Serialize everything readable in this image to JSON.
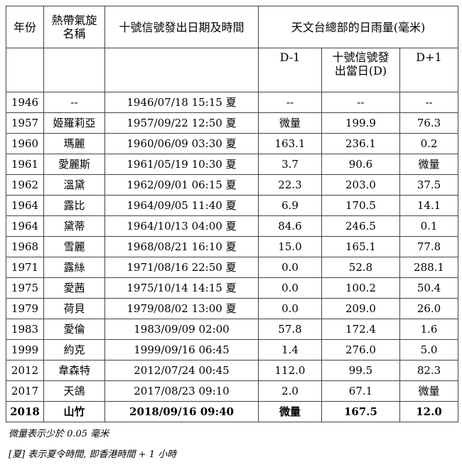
{
  "headers": {
    "year": "年份",
    "name": "熱帶氣旋\n名稱",
    "signal_time": "十號信號發出日期及時間",
    "rainfall": "天文台總部的日雨量(毫米)",
    "d_minus_1": "D-1",
    "d_day": "十號信號發\n出當日(D)",
    "d_plus_1": "D+1"
  },
  "rows": [
    {
      "year": "1946",
      "name": "--",
      "time": "1946/07/18 15:15 夏",
      "d_minus_1": "--",
      "d": "--",
      "d_plus_1": "--"
    },
    {
      "year": "1957",
      "name": "姬羅莉亞",
      "time": "1957/09/22 12:50 夏",
      "d_minus_1": "微量",
      "d": "199.9",
      "d_plus_1": "76.3"
    },
    {
      "year": "1960",
      "name": "瑪麗",
      "time": "1960/06/09 03:30 夏",
      "d_minus_1": "163.1",
      "d": "236.1",
      "d_plus_1": "0.2"
    },
    {
      "year": "1961",
      "name": "愛麗斯",
      "time": "1961/05/19 10:30 夏",
      "d_minus_1": "3.7",
      "d": "90.6",
      "d_plus_1": "微量"
    },
    {
      "year": "1962",
      "name": "溫黛",
      "time": "1962/09/01 06:15 夏",
      "d_minus_1": "22.3",
      "d": "203.0",
      "d_plus_1": "37.5"
    },
    {
      "year": "1964",
      "name": "露比",
      "time": "1964/09/05 11:40 夏",
      "d_minus_1": "6.9",
      "d": "170.5",
      "d_plus_1": "14.1"
    },
    {
      "year": "1964",
      "name": "黛蒂",
      "time": "1964/10/13 04:00 夏",
      "d_minus_1": "84.6",
      "d": "246.5",
      "d_plus_1": "0.1"
    },
    {
      "year": "1968",
      "name": "雪麗",
      "time": "1968/08/21 16:10 夏",
      "d_minus_1": "15.0",
      "d": "165.1",
      "d_plus_1": "77.8"
    },
    {
      "year": "1971",
      "name": "露絲",
      "time": "1971/08/16 22:50 夏",
      "d_minus_1": "0.0",
      "d": "52.8",
      "d_plus_1": "288.1"
    },
    {
      "year": "1975",
      "name": "愛茜",
      "time": "1975/10/14 14:15 夏",
      "d_minus_1": "0.0",
      "d": "100.2",
      "d_plus_1": "50.4"
    },
    {
      "year": "1979",
      "name": "荷貝",
      "time": "1979/08/02 13:00 夏",
      "d_minus_1": "0.0",
      "d": "209.0",
      "d_plus_1": "26.0"
    },
    {
      "year": "1983",
      "name": "愛倫",
      "time": "1983/09/09 02:00",
      "d_minus_1": "57.8",
      "d": "172.4",
      "d_plus_1": "1.6"
    },
    {
      "year": "1999",
      "name": "約克",
      "time": "1999/09/16 06:45",
      "d_minus_1": "1.4",
      "d": "276.0",
      "d_plus_1": "5.0"
    },
    {
      "year": "2012",
      "name": "韋森特",
      "time": "2012/07/24 00:45",
      "d_minus_1": "112.0",
      "d": "99.5",
      "d_plus_1": "82.3"
    },
    {
      "year": "2017",
      "name": "天鴿",
      "time": "2017/08/23 09:10",
      "d_minus_1": "2.0",
      "d": "67.1",
      "d_plus_1": "微量"
    },
    {
      "year": "2018",
      "name": "山竹",
      "time": "2018/09/16 09:40",
      "d_minus_1": "微量",
      "d": "167.5",
      "d_plus_1": "12.0",
      "bold": true
    }
  ],
  "notes": [
    "微量表示少於  0.05  毫米",
    "[夏] 表示夏令時間, 即香港時間  + 1  小時"
  ]
}
